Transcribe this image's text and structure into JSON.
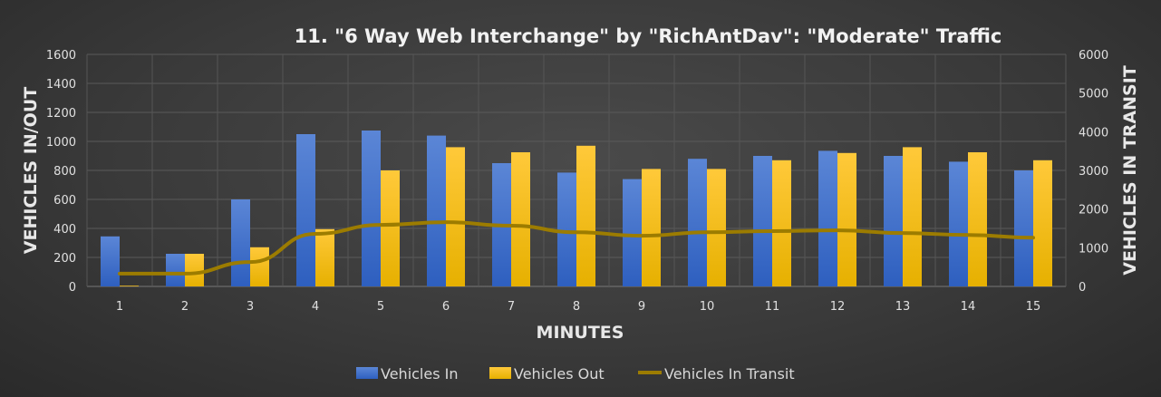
{
  "chart_data": {
    "type": "bar",
    "title": "11. \"6 Way Web Interchange\" by \"RichAntDav\": \"Moderate\" Traffic",
    "xlabel": "MINUTES",
    "ylabel": "VEHICLES IN/OUT",
    "y2label": "VEHICLES IN TRANSIT",
    "categories": [
      "1",
      "2",
      "3",
      "4",
      "5",
      "6",
      "7",
      "8",
      "9",
      "10",
      "11",
      "12",
      "13",
      "14",
      "15"
    ],
    "ylim": [
      0,
      1600
    ],
    "yticks": [
      0,
      200,
      400,
      600,
      800,
      1000,
      1200,
      1400,
      1600
    ],
    "y2lim": [
      0,
      6000
    ],
    "y2ticks": [
      0,
      1000,
      2000,
      3000,
      4000,
      5000,
      6000
    ],
    "grid": true,
    "legend_position": "bottom",
    "series": [
      {
        "name": "Vehicles In",
        "type": "bar",
        "axis": "left",
        "color": "#4472C4",
        "values": [
          345,
          225,
          600,
          1050,
          1075,
          1040,
          850,
          785,
          740,
          880,
          900,
          935,
          900,
          860,
          800
        ]
      },
      {
        "name": "Vehicles Out",
        "type": "bar",
        "axis": "left",
        "color": "#FFC000",
        "values": [
          5,
          225,
          270,
          395,
          800,
          960,
          925,
          970,
          810,
          810,
          870,
          920,
          960,
          925,
          870
        ]
      },
      {
        "name": "Vehicles In Transit",
        "type": "line",
        "axis": "right",
        "color": "#9C7C00",
        "values": [
          330,
          330,
          630,
          1360,
          1590,
          1660,
          1570,
          1400,
          1310,
          1400,
          1430,
          1450,
          1380,
          1330,
          1260
        ]
      }
    ]
  }
}
